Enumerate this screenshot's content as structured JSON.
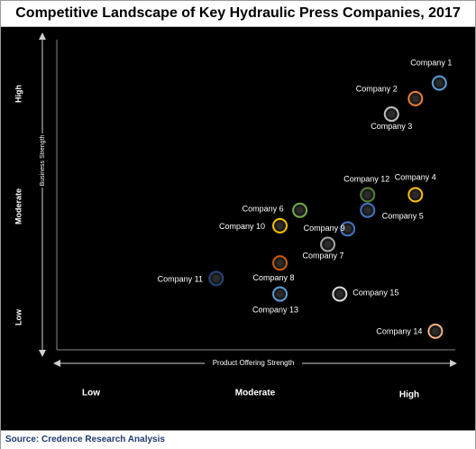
{
  "title": "Competitive Landscape of Key Hydraulic Press Companies, 2017",
  "source": "Source: Credence Research Analysis",
  "chart_data": {
    "type": "scatter",
    "xlabel": "Product Offering Strength",
    "ylabel": "Business Strength",
    "x_levels": [
      "Low",
      "Moderate",
      "High"
    ],
    "y_levels": [
      "Low",
      "Moderate",
      "High"
    ],
    "xlim": [
      0,
      10
    ],
    "ylim": [
      0,
      10
    ],
    "grid": false,
    "points": [
      {
        "label": "Company 1",
        "x": 9.6,
        "y": 8.6,
        "color": "#5b9bd5"
      },
      {
        "label": "Company 2",
        "x": 9.0,
        "y": 8.1,
        "color": "#ed7d31"
      },
      {
        "label": "Company 3",
        "x": 8.4,
        "y": 7.6,
        "color": "#bfbfbf"
      },
      {
        "label": "Company 4",
        "x": 9.0,
        "y": 5.0,
        "color": "#ffc000"
      },
      {
        "label": "Company 5",
        "x": 7.8,
        "y": 4.5,
        "color": "#4472c4"
      },
      {
        "label": "Company 6",
        "x": 6.1,
        "y": 4.5,
        "color": "#70ad47"
      },
      {
        "label": "Company 7",
        "x": 6.8,
        "y": 3.4,
        "color": "#a5a5a5"
      },
      {
        "label": "Company 8",
        "x": 5.6,
        "y": 2.8,
        "color": "#c55a11"
      },
      {
        "label": "Company 9",
        "x": 7.3,
        "y": 3.9,
        "color": "#4472c4"
      },
      {
        "label": "Company 10",
        "x": 5.6,
        "y": 4.0,
        "color": "#ffc000"
      },
      {
        "label": "Company 11",
        "x": 4.0,
        "y": 2.3,
        "color": "#264478"
      },
      {
        "label": "Company 12",
        "x": 7.8,
        "y": 5.0,
        "color": "#548235"
      },
      {
        "label": "Company 13",
        "x": 5.6,
        "y": 1.8,
        "color": "#5b9bd5"
      },
      {
        "label": "Company 14",
        "x": 9.5,
        "y": 0.6,
        "color": "#f4b183"
      },
      {
        "label": "Company 15",
        "x": 7.1,
        "y": 1.8,
        "color": "#d9d9d9"
      }
    ]
  }
}
